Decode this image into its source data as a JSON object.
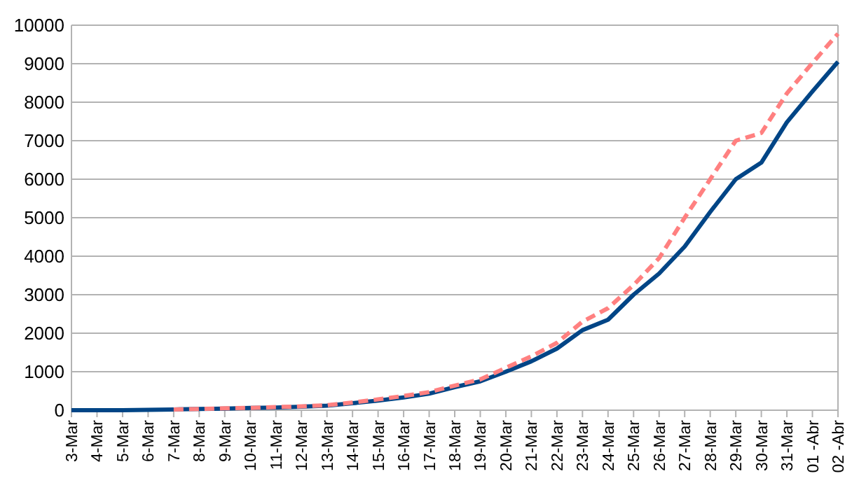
{
  "chart_data": {
    "type": "line",
    "categories": [
      "3-Mar",
      "4-Mar",
      "5-Mar",
      "6-Mar",
      "7-Mar",
      "8-Mar",
      "9-Mar",
      "10-Mar",
      "11-Mar",
      "12-Mar",
      "13-Mar",
      "14-Mar",
      "15-Mar",
      "16-Mar",
      "17-Mar",
      "18-Mar",
      "19-Mar",
      "20-Mar",
      "21-Mar",
      "22-Mar",
      "23-Mar",
      "24-Mar",
      "25-Mar",
      "26-Mar",
      "27-Mar",
      "28-Mar",
      "29-Mar",
      "30-Mar",
      "31-Mar",
      "01 -Abr",
      "02 -Abr"
    ],
    "series": [
      {
        "color": "#004586",
        "line_style": "solid",
        "values": [
          0,
          0,
          0,
          10,
          20,
          30,
          40,
          60,
          70,
          90,
          120,
          180,
          250,
          330,
          430,
          600,
          750,
          1000,
          1270,
          1600,
          2080,
          2350,
          3000,
          3550,
          4250,
          5150,
          6000,
          6430,
          7480,
          8280,
          9050
        ]
      },
      {
        "color": "#ff8080",
        "line_style": "dashed",
        "values": [
          null,
          null,
          null,
          null,
          20,
          30,
          50,
          60,
          80,
          100,
          130,
          200,
          280,
          370,
          470,
          640,
          800,
          1100,
          1400,
          1750,
          2300,
          2650,
          3250,
          3950,
          5000,
          6000,
          7000,
          7200,
          8230,
          9020,
          9780
        ]
      }
    ],
    "ylim": [
      0,
      10000
    ],
    "yticks": [
      0,
      1000,
      2000,
      3000,
      4000,
      5000,
      6000,
      7000,
      8000,
      9000,
      10000
    ],
    "grid": "y",
    "marker": "none"
  }
}
